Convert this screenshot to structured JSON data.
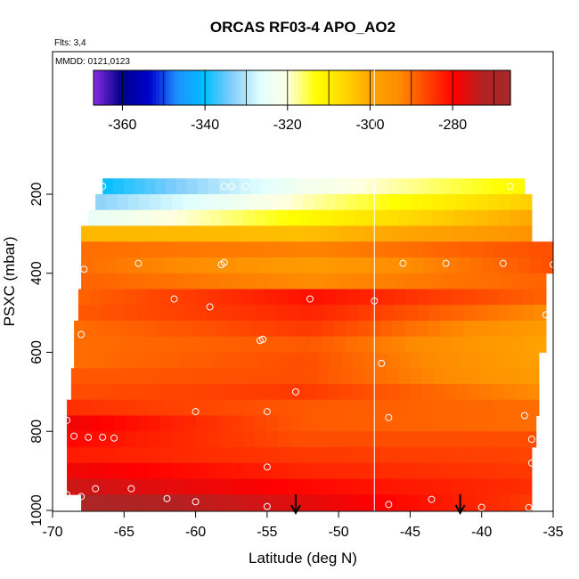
{
  "chart_data": {
    "type": "heatmap",
    "title": "ORCAS RF03-4 APO_AO2",
    "annotations": [
      "Flts: 3,4",
      "MMDD: 0121,0123"
    ],
    "xlabel": "Latitude (deg N)",
    "ylabel": "PSXC (mbar)",
    "xlim": [
      -70,
      -35
    ],
    "ylim": [
      1000,
      100
    ],
    "xticks": [
      -70,
      -65,
      -60,
      -55,
      -50,
      -45,
      -40,
      -35
    ],
    "yticks": [
      200,
      400,
      600,
      800,
      1000
    ],
    "colorbar": {
      "range": [
        -367,
        -266
      ],
      "ticks": [
        -360,
        -340,
        -320,
        -300,
        -280
      ],
      "colors": [
        "#8a2be2",
        "#00008b",
        "#0000cd",
        "#1e90ff",
        "#00bfff",
        "#87cefa",
        "#e0ffff",
        "#ffffe0",
        "#ffff00",
        "#ffd700",
        "#ffa500",
        "#ff8c00",
        "#ff4500",
        "#ff0000",
        "#b22222",
        "#a52a2a"
      ]
    },
    "vertical_line_x": -47.5,
    "rows": [
      {
        "p": 180,
        "xmin": -66.5,
        "xmax": -37,
        "left": -340,
        "mid": -322,
        "right": -312
      },
      {
        "p": 220,
        "xmin": -67,
        "xmax": -36.5,
        "left": -333,
        "mid": -318,
        "right": -305
      },
      {
        "p": 260,
        "xmin": -67.5,
        "xmax": -36.5,
        "left": -325,
        "mid": -312,
        "right": -300
      },
      {
        "p": 300,
        "xmin": -68,
        "xmax": -36.5,
        "left": -302,
        "mid": -303,
        "right": -295
      },
      {
        "p": 340,
        "xmin": -68,
        "xmax": -35,
        "left": -290,
        "mid": -292,
        "right": -287
      },
      {
        "p": 380,
        "xmin": -68,
        "xmax": -35,
        "left": -290,
        "mid": -297,
        "right": -287
      },
      {
        "p": 420,
        "xmin": -68,
        "xmax": -35.5,
        "left": -289,
        "mid": -293,
        "right": -289
      },
      {
        "p": 460,
        "xmin": -68.2,
        "xmax": -35.5,
        "left": -289,
        "mid": -281,
        "right": -289
      },
      {
        "p": 500,
        "xmin": -68.2,
        "xmax": -35.5,
        "left": -288,
        "mid": -283,
        "right": -293
      },
      {
        "p": 540,
        "xmin": -68.5,
        "xmax": -35.5,
        "left": -290,
        "mid": -285,
        "right": -297
      },
      {
        "p": 580,
        "xmin": -68.5,
        "xmax": -35.5,
        "left": -290,
        "mid": -288,
        "right": -299
      },
      {
        "p": 620,
        "xmin": -68.5,
        "xmax": -36,
        "left": -290,
        "mid": -287,
        "right": -298
      },
      {
        "p": 660,
        "xmin": -68.7,
        "xmax": -36,
        "left": -288,
        "mid": -287,
        "right": -297
      },
      {
        "p": 700,
        "xmin": -68.7,
        "xmax": -36,
        "left": -287,
        "mid": -285,
        "right": -293
      },
      {
        "p": 740,
        "xmin": -69,
        "xmax": -36,
        "left": -284,
        "mid": -288,
        "right": -290
      },
      {
        "p": 780,
        "xmin": -69,
        "xmax": -36.2,
        "left": -278,
        "mid": -288,
        "right": -290
      },
      {
        "p": 820,
        "xmin": -69,
        "xmax": -36.2,
        "left": -280,
        "mid": -287,
        "right": -287
      },
      {
        "p": 860,
        "xmin": -69,
        "xmax": -36.5,
        "left": -282,
        "mid": -285,
        "right": -286
      },
      {
        "p": 900,
        "xmin": -69,
        "xmax": -36.5,
        "left": -278,
        "mid": -283,
        "right": -285
      },
      {
        "p": 940,
        "xmin": -69,
        "xmax": -36.5,
        "left": -275,
        "mid": -280,
        "right": -284
      },
      {
        "p": 980,
        "xmin": -68,
        "xmax": -36.5,
        "left": -270,
        "mid": -277,
        "right": -285
      }
    ],
    "points": [
      {
        "x": -66.5,
        "y": 180
      },
      {
        "x": -58,
        "y": 180
      },
      {
        "x": -57.5,
        "y": 180
      },
      {
        "x": -56.5,
        "y": 180
      },
      {
        "x": -50,
        "y": 180
      },
      {
        "x": -48.5,
        "y": 180
      },
      {
        "x": -38,
        "y": 180
      },
      {
        "x": -67.3,
        "y": 245
      },
      {
        "x": -64,
        "y": 375
      },
      {
        "x": -58,
        "y": 373
      },
      {
        "x": -58.2,
        "y": 378
      },
      {
        "x": -67.8,
        "y": 390
      },
      {
        "x": -45.5,
        "y": 375
      },
      {
        "x": -42.5,
        "y": 375
      },
      {
        "x": -38.5,
        "y": 375
      },
      {
        "x": -35,
        "y": 378
      },
      {
        "x": -61.5,
        "y": 465
      },
      {
        "x": -59,
        "y": 485
      },
      {
        "x": -52,
        "y": 465
      },
      {
        "x": -47.5,
        "y": 470
      },
      {
        "x": -35.5,
        "y": 505
      },
      {
        "x": -68,
        "y": 555
      },
      {
        "x": -55.5,
        "y": 570
      },
      {
        "x": -55.3,
        "y": 567
      },
      {
        "x": -47,
        "y": 628
      },
      {
        "x": -53,
        "y": 700
      },
      {
        "x": -60,
        "y": 750
      },
      {
        "x": -55,
        "y": 750
      },
      {
        "x": -69,
        "y": 772
      },
      {
        "x": -46.5,
        "y": 765
      },
      {
        "x": -37,
        "y": 760
      },
      {
        "x": -68.5,
        "y": 812
      },
      {
        "x": -67.5,
        "y": 815
      },
      {
        "x": -66.5,
        "y": 815
      },
      {
        "x": -65.7,
        "y": 817
      },
      {
        "x": -36.5,
        "y": 820
      },
      {
        "x": -55,
        "y": 890
      },
      {
        "x": -36.5,
        "y": 880
      },
      {
        "x": -67,
        "y": 945
      },
      {
        "x": -64.5,
        "y": 945
      },
      {
        "x": -69,
        "y": 960
      },
      {
        "x": -68,
        "y": 965
      },
      {
        "x": -62,
        "y": 970
      },
      {
        "x": -60,
        "y": 978
      },
      {
        "x": -55,
        "y": 990
      },
      {
        "x": -46.5,
        "y": 985
      },
      {
        "x": -43.5,
        "y": 972
      },
      {
        "x": -40,
        "y": 992
      },
      {
        "x": -36.7,
        "y": 993
      }
    ],
    "arrows_x": [
      -53,
      -41.5
    ]
  }
}
